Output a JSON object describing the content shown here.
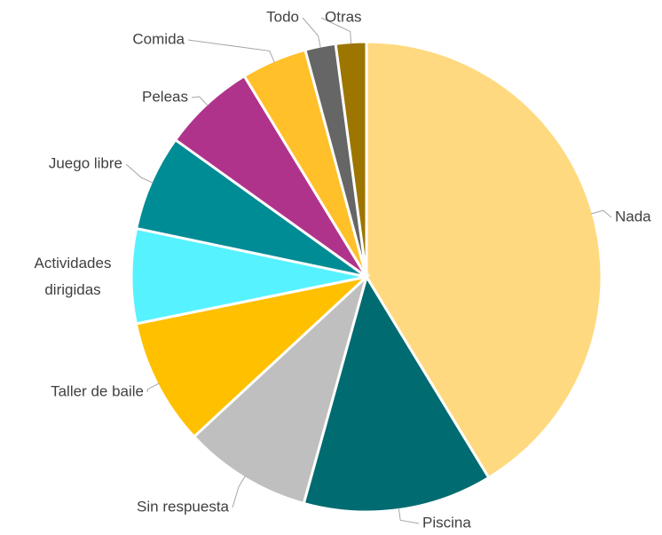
{
  "chart_data": {
    "type": "pie",
    "categories": [
      "Nada",
      "Piscina",
      "Sin respuesta",
      "Taller de baile",
      "Actividades dirigidas",
      "Juego libre",
      "Peleas",
      "Comida",
      "Todo",
      "Otras"
    ],
    "values": [
      41.3,
      13,
      8.8,
      8.7,
      6.5,
      6.6,
      6.4,
      4.5,
      2.1,
      2.1
    ],
    "colors": [
      "#FFD97F",
      "#006B70",
      "#BFBFBF",
      "#FFC000",
      "#57F2FF",
      "#008C95",
      "#B0338B",
      "#FFC02A",
      "#666666",
      "#9C7600"
    ]
  }
}
